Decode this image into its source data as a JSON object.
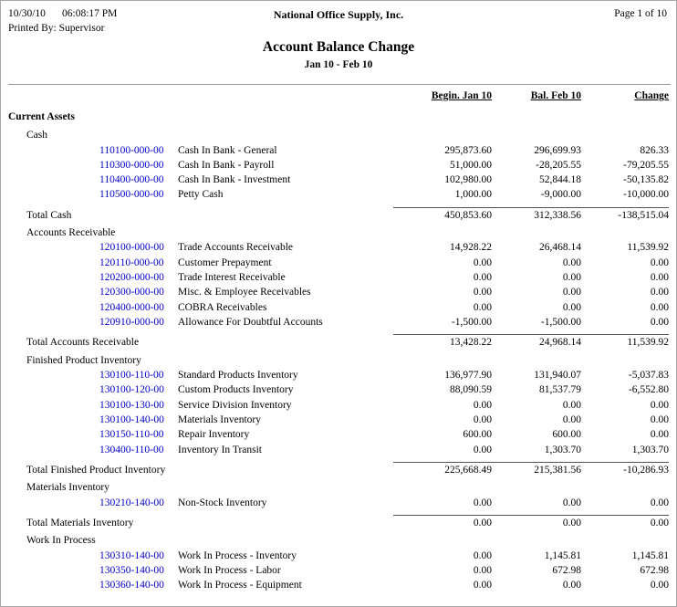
{
  "header": {
    "date": "10/30/10",
    "time": "06:08:17 PM",
    "company": "National Office Supply, Inc.",
    "page_indicator": "Page 1 of 10",
    "printed_by": "Printed By: Supervisor",
    "title": "Account Balance Change",
    "subtitle": "Jan 10 - Feb 10"
  },
  "columns": [
    "Begin. Jan 10",
    "Bal. Feb 10",
    "Change"
  ],
  "section_title": "Current Assets",
  "colors": {
    "account_link": "#0000cc"
  },
  "groups": [
    {
      "name": "Cash",
      "rows": [
        {
          "account": "110100-000-00",
          "description": "Cash In Bank - General",
          "begin": "295,873.60",
          "end": "296,699.93",
          "change": "826.33"
        },
        {
          "account": "110300-000-00",
          "description": "Cash In Bank - Payroll",
          "begin": "51,000.00",
          "end": "-28,205.55",
          "change": "-79,205.55"
        },
        {
          "account": "110400-000-00",
          "description": "Cash In Bank - Investment",
          "begin": "102,980.00",
          "end": "52,844.18",
          "change": "-50,135.82"
        },
        {
          "account": "110500-000-00",
          "description": "Petty Cash",
          "begin": "1,000.00",
          "end": "-9,000.00",
          "change": "-10,000.00"
        }
      ],
      "total": {
        "label": "Total Cash",
        "begin": "450,853.60",
        "end": "312,338.56",
        "change": "-138,515.04"
      }
    },
    {
      "name": "Accounts Receivable",
      "rows": [
        {
          "account": "120100-000-00",
          "description": "Trade Accounts Receivable",
          "begin": "14,928.22",
          "end": "26,468.14",
          "change": "11,539.92"
        },
        {
          "account": "120110-000-00",
          "description": "Customer Prepayment",
          "begin": "0.00",
          "end": "0.00",
          "change": "0.00"
        },
        {
          "account": "120200-000-00",
          "description": "Trade Interest Receivable",
          "begin": "0.00",
          "end": "0.00",
          "change": "0.00"
        },
        {
          "account": "120300-000-00",
          "description": "Misc. & Employee Receivables",
          "begin": "0.00",
          "end": "0.00",
          "change": "0.00"
        },
        {
          "account": "120400-000-00",
          "description": "COBRA Receivables",
          "begin": "0.00",
          "end": "0.00",
          "change": "0.00"
        },
        {
          "account": "120910-000-00",
          "description": "Allowance For Doubtful Accounts",
          "begin": "-1,500.00",
          "end": "-1,500.00",
          "change": "0.00"
        }
      ],
      "total": {
        "label": "Total Accounts Receivable",
        "begin": "13,428.22",
        "end": "24,968.14",
        "change": "11,539.92"
      }
    },
    {
      "name": "Finished Product Inventory",
      "rows": [
        {
          "account": "130100-110-00",
          "description": "Standard Products Inventory",
          "begin": "136,977.90",
          "end": "131,940.07",
          "change": "-5,037.83"
        },
        {
          "account": "130100-120-00",
          "description": "Custom Products Inventory",
          "begin": "88,090.59",
          "end": "81,537.79",
          "change": "-6,552.80"
        },
        {
          "account": "130100-130-00",
          "description": "Service Division Inventory",
          "begin": "0.00",
          "end": "0.00",
          "change": "0.00"
        },
        {
          "account": "130100-140-00",
          "description": "Materials Inventory",
          "begin": "0.00",
          "end": "0.00",
          "change": "0.00"
        },
        {
          "account": "130150-110-00",
          "description": "Repair Inventory",
          "begin": "600.00",
          "end": "600.00",
          "change": "0.00"
        },
        {
          "account": "130400-110-00",
          "description": "Inventory In Transit",
          "begin": "0.00",
          "end": "1,303.70",
          "change": "1,303.70"
        }
      ],
      "total": {
        "label": "Total Finished Product Inventory",
        "begin": "225,668.49",
        "end": "215,381.56",
        "change": "-10,286.93"
      }
    },
    {
      "name": "Materials Inventory",
      "rows": [
        {
          "account": "130210-140-00",
          "description": "Non-Stock Inventory",
          "begin": "0.00",
          "end": "0.00",
          "change": "0.00"
        }
      ],
      "total": {
        "label": "Total Materials Inventory",
        "begin": "0.00",
        "end": "0.00",
        "change": "0.00"
      }
    },
    {
      "name": "Work In Process",
      "rows": [
        {
          "account": "130310-140-00",
          "description": "Work In Process - Inventory",
          "begin": "0.00",
          "end": "1,145.81",
          "change": "1,145.81"
        },
        {
          "account": "130350-140-00",
          "description": "Work In Process - Labor",
          "begin": "0.00",
          "end": "672.98",
          "change": "672.98"
        },
        {
          "account": "130360-140-00",
          "description": "Work In Process - Equipment",
          "begin": "0.00",
          "end": "0.00",
          "change": "0.00"
        }
      ],
      "total": null
    }
  ]
}
